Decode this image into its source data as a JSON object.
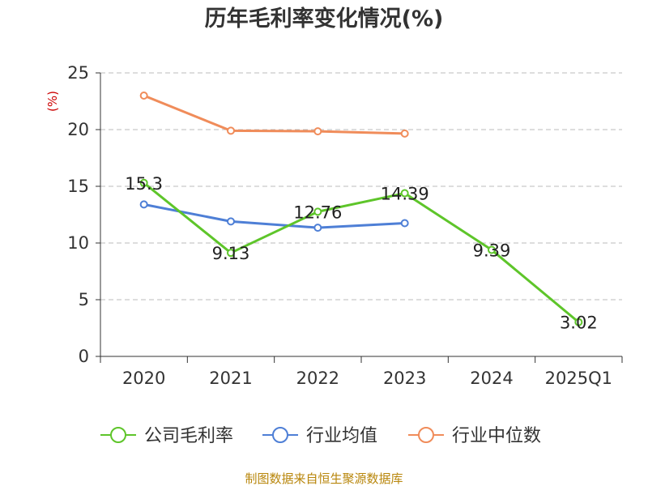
{
  "chart_data": {
    "type": "line",
    "title": "历年毛利率变化情况(%)",
    "unit_label": "(%)",
    "categories": [
      "2020",
      "2021",
      "2022",
      "2023",
      "2024",
      "2025Q1"
    ],
    "y_ticks": [
      "0",
      "5",
      "10",
      "15",
      "20",
      "25"
    ],
    "ylim": [
      0,
      25
    ],
    "grid": true,
    "legend_position": "bottom",
    "series": [
      {
        "name": "公司毛利率",
        "color": "#5ec52a",
        "values": [
          15.3,
          9.13,
          12.76,
          14.39,
          9.39,
          3.02
        ],
        "labels": [
          "15.3",
          "9.13",
          "12.76",
          "14.39",
          "9.39",
          "3.02"
        ]
      },
      {
        "name": "行业均值",
        "color": "#4e7fd6",
        "values": [
          13.4,
          11.9,
          11.35,
          11.75,
          null,
          null
        ]
      },
      {
        "name": "行业中位数",
        "color": "#f08c5a",
        "values": [
          23.0,
          19.9,
          19.85,
          19.65,
          null,
          null
        ]
      }
    ]
  },
  "source": "制图数据来自恒生聚源数据库"
}
